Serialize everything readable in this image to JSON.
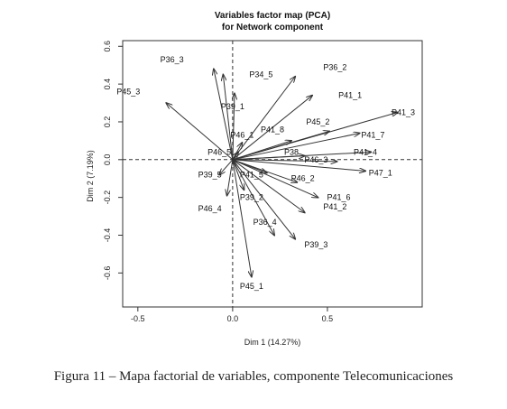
{
  "caption": "Figura 11 – Mapa factorial de variables, componente Telecomunicaciones",
  "chart_data": {
    "type": "scatter",
    "title": "Variables factor map (PCA)",
    "subtitle": "for Network component",
    "xlabel": "Dim 1 (14.27%)",
    "ylabel": "Dim 2 (7.19%)",
    "xlim": [
      -0.58,
      1.0
    ],
    "ylim": [
      -0.78,
      0.63
    ],
    "xticks": [
      -0.5,
      0.0,
      0.5
    ],
    "xtick_labels": [
      "-0.5",
      "0.0",
      "0.5"
    ],
    "yticks": [
      -0.6,
      -0.4,
      -0.2,
      0.0,
      0.2,
      0.4,
      0.6
    ],
    "ytick_labels": [
      "-0.6",
      "-0.4",
      "-0.2",
      "0.0",
      "0.2",
      "0.4",
      "0.6"
    ],
    "reference_lines": {
      "x": 0,
      "y": 0,
      "style": "dashed"
    },
    "grid": false,
    "arrow_color": "#333333",
    "variables": [
      {
        "name": "P36_3",
        "x": -0.1,
        "y": 0.48,
        "lx": -0.32,
        "ly": 0.53
      },
      {
        "name": "P45_3",
        "x": -0.35,
        "y": 0.3,
        "lx": -0.55,
        "ly": 0.36
      },
      {
        "name": "P34_5",
        "x": -0.05,
        "y": 0.45,
        "lx": 0.15,
        "ly": 0.45
      },
      {
        "name": "P36_2",
        "x": 0.33,
        "y": 0.44,
        "lx": 0.54,
        "ly": 0.49
      },
      {
        "name": "P39_1",
        "x": 0.01,
        "y": 0.35,
        "lx": 0.0,
        "ly": 0.28
      },
      {
        "name": "P41_1",
        "x": 0.42,
        "y": 0.34,
        "lx": 0.62,
        "ly": 0.34
      },
      {
        "name": "P41_3",
        "x": 0.87,
        "y": 0.25,
        "lx": 0.9,
        "ly": 0.25
      },
      {
        "name": "P45_2",
        "x": 0.51,
        "y": 0.15,
        "lx": 0.45,
        "ly": 0.2
      },
      {
        "name": "P41_8",
        "x": 0.31,
        "y": 0.1,
        "lx": 0.21,
        "ly": 0.16
      },
      {
        "name": "P46_1",
        "x": 0.05,
        "y": 0.09,
        "lx": 0.05,
        "ly": 0.13
      },
      {
        "name": "P41_7",
        "x": 0.67,
        "y": 0.14,
        "lx": 0.74,
        "ly": 0.13
      },
      {
        "name": "P41_4",
        "x": 0.73,
        "y": 0.04,
        "lx": 0.7,
        "ly": 0.04
      },
      {
        "name": "P46_5",
        "x": 0.03,
        "y": 0.04,
        "lx": -0.07,
        "ly": 0.04
      },
      {
        "name": "P38",
        "x": 0.38,
        "y": 0.02,
        "lx": 0.31,
        "ly": 0.04
      },
      {
        "name": "P46_3",
        "x": 0.55,
        "y": -0.01,
        "lx": 0.44,
        "ly": 0.0
      },
      {
        "name": "P47_1",
        "x": 0.7,
        "y": -0.06,
        "lx": 0.78,
        "ly": -0.07
      },
      {
        "name": "P39_5",
        "x": -0.07,
        "y": -0.08,
        "lx": -0.12,
        "ly": -0.08
      },
      {
        "name": "P41_5",
        "x": 0.18,
        "y": -0.07,
        "lx": 0.1,
        "ly": -0.08
      },
      {
        "name": "P46_2",
        "x": 0.34,
        "y": -0.12,
        "lx": 0.37,
        "ly": -0.1
      },
      {
        "name": "P41_6",
        "x": 0.45,
        "y": -0.2,
        "lx": 0.56,
        "ly": -0.2
      },
      {
        "name": "P41_2",
        "x": 0.38,
        "y": -0.28,
        "lx": 0.54,
        "ly": -0.25
      },
      {
        "name": "P39_2",
        "x": 0.06,
        "y": -0.16,
        "lx": 0.1,
        "ly": -0.2
      },
      {
        "name": "P46_4",
        "x": -0.03,
        "y": -0.19,
        "lx": -0.12,
        "ly": -0.26
      },
      {
        "name": "P36_4",
        "x": 0.22,
        "y": -0.4,
        "lx": 0.17,
        "ly": -0.33
      },
      {
        "name": "P39_3",
        "x": 0.33,
        "y": -0.42,
        "lx": 0.44,
        "ly": -0.45
      },
      {
        "name": "P45_1",
        "x": 0.1,
        "y": -0.62,
        "lx": 0.1,
        "ly": -0.67
      }
    ]
  }
}
